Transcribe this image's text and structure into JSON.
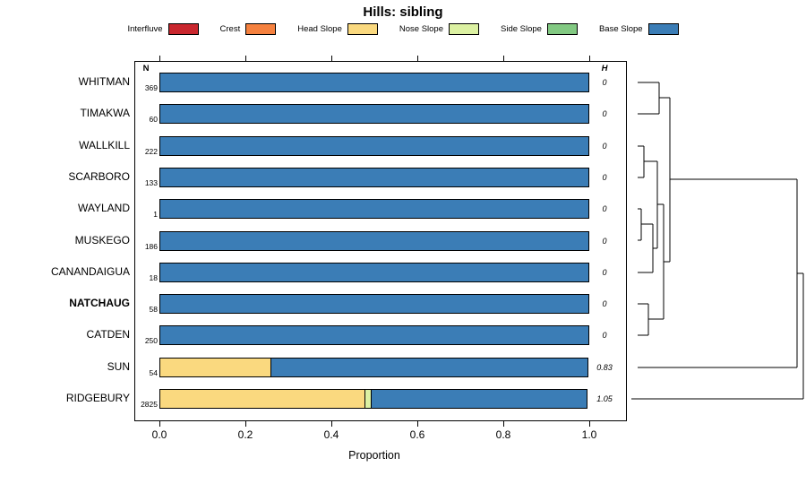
{
  "title": "Hills: sibling",
  "columns": {
    "n": "N",
    "h": "H"
  },
  "legend": [
    {
      "label": "Interfluve",
      "color": "#C9272E"
    },
    {
      "label": "Crest",
      "color": "#F5813F"
    },
    {
      "label": "Head Slope",
      "color": "#FAD97F"
    },
    {
      "label": "Nose Slope",
      "color": "#DCF1A2"
    },
    {
      "label": "Side Slope",
      "color": "#82C982"
    },
    {
      "label": "Base Slope",
      "color": "#3B7DB6"
    }
  ],
  "chart_data": {
    "type": "bar",
    "variant": "horizontal-stacked",
    "title": "Hills: sibling",
    "xlabel": "Proportion",
    "xlim": [
      0,
      1
    ],
    "x_ticks": [
      "0.0",
      "0.2",
      "0.4",
      "0.6",
      "0.8",
      "1.0"
    ],
    "grid": false,
    "legend_position": "top",
    "classes": [
      "Interfluve",
      "Crest",
      "Head Slope",
      "Nose Slope",
      "Side Slope",
      "Base Slope"
    ],
    "rows": [
      {
        "label": "WHITMAN",
        "n": "369",
        "h": "0",
        "bold": false,
        "segments": [
          {
            "name": "Base Slope",
            "value": 1.0
          }
        ]
      },
      {
        "label": "TIMAKWA",
        "n": "60",
        "h": "0",
        "bold": false,
        "segments": [
          {
            "name": "Base Slope",
            "value": 1.0
          }
        ]
      },
      {
        "label": "WALLKILL",
        "n": "222",
        "h": "0",
        "bold": false,
        "segments": [
          {
            "name": "Base Slope",
            "value": 1.0
          }
        ]
      },
      {
        "label": "SCARBORO",
        "n": "133",
        "h": "0",
        "bold": false,
        "segments": [
          {
            "name": "Base Slope",
            "value": 1.0
          }
        ]
      },
      {
        "label": "WAYLAND",
        "n": "1",
        "h": "0",
        "bold": false,
        "segments": [
          {
            "name": "Base Slope",
            "value": 1.0
          }
        ]
      },
      {
        "label": "MUSKEGO",
        "n": "186",
        "h": "0",
        "bold": false,
        "segments": [
          {
            "name": "Base Slope",
            "value": 1.0
          }
        ]
      },
      {
        "label": "CANANDAIGUA",
        "n": "18",
        "h": "0",
        "bold": false,
        "segments": [
          {
            "name": "Base Slope",
            "value": 1.0
          }
        ]
      },
      {
        "label": "NATCHAUG",
        "n": "58",
        "h": "0",
        "bold": true,
        "segments": [
          {
            "name": "Base Slope",
            "value": 1.0
          }
        ]
      },
      {
        "label": "CATDEN",
        "n": "250",
        "h": "0",
        "bold": false,
        "segments": [
          {
            "name": "Base Slope",
            "value": 1.0
          }
        ]
      },
      {
        "label": "SUN",
        "n": "54",
        "h": "0.83",
        "bold": false,
        "segments": [
          {
            "name": "Head Slope",
            "value": 0.26
          },
          {
            "name": "Base Slope",
            "value": 0.74
          }
        ]
      },
      {
        "label": "RIDGEBURY",
        "n": "2825",
        "h": "1.05",
        "bold": false,
        "segments": [
          {
            "name": "Head Slope",
            "value": 0.48
          },
          {
            "name": "Nose Slope",
            "value": 0.015
          },
          {
            "name": "Base Slope",
            "value": 0.505
          }
        ]
      }
    ]
  },
  "dendrogram": {
    "segments": [
      [
        12,
        32,
        36,
        32
      ],
      [
        12,
        67,
        36,
        67
      ],
      [
        36,
        32,
        36,
        67
      ],
      [
        36,
        49,
        48,
        49
      ],
      [
        12,
        103,
        19,
        103
      ],
      [
        12,
        138,
        19,
        138
      ],
      [
        19,
        103,
        19,
        138
      ],
      [
        19,
        120,
        34,
        120
      ],
      [
        12,
        173,
        16,
        173
      ],
      [
        12,
        208,
        16,
        208
      ],
      [
        16,
        173,
        16,
        208
      ],
      [
        16,
        190,
        29,
        190
      ],
      [
        12,
        244,
        29,
        244
      ],
      [
        29,
        190,
        29,
        244
      ],
      [
        29,
        217,
        34,
        217
      ],
      [
        34,
        120,
        34,
        217
      ],
      [
        34,
        168,
        41,
        168
      ],
      [
        12,
        279,
        24,
        279
      ],
      [
        12,
        314,
        24,
        314
      ],
      [
        24,
        279,
        24,
        314
      ],
      [
        24,
        296,
        41,
        296
      ],
      [
        41,
        168,
        41,
        296
      ],
      [
        41,
        232,
        48,
        232
      ],
      [
        48,
        49,
        48,
        232
      ],
      [
        48,
        140,
        190,
        140
      ],
      [
        12,
        350,
        190,
        350
      ],
      [
        190,
        140,
        190,
        350
      ],
      [
        190,
        245,
        197,
        245
      ],
      [
        5,
        385,
        197,
        385
      ],
      [
        197,
        245,
        197,
        385
      ]
    ]
  }
}
